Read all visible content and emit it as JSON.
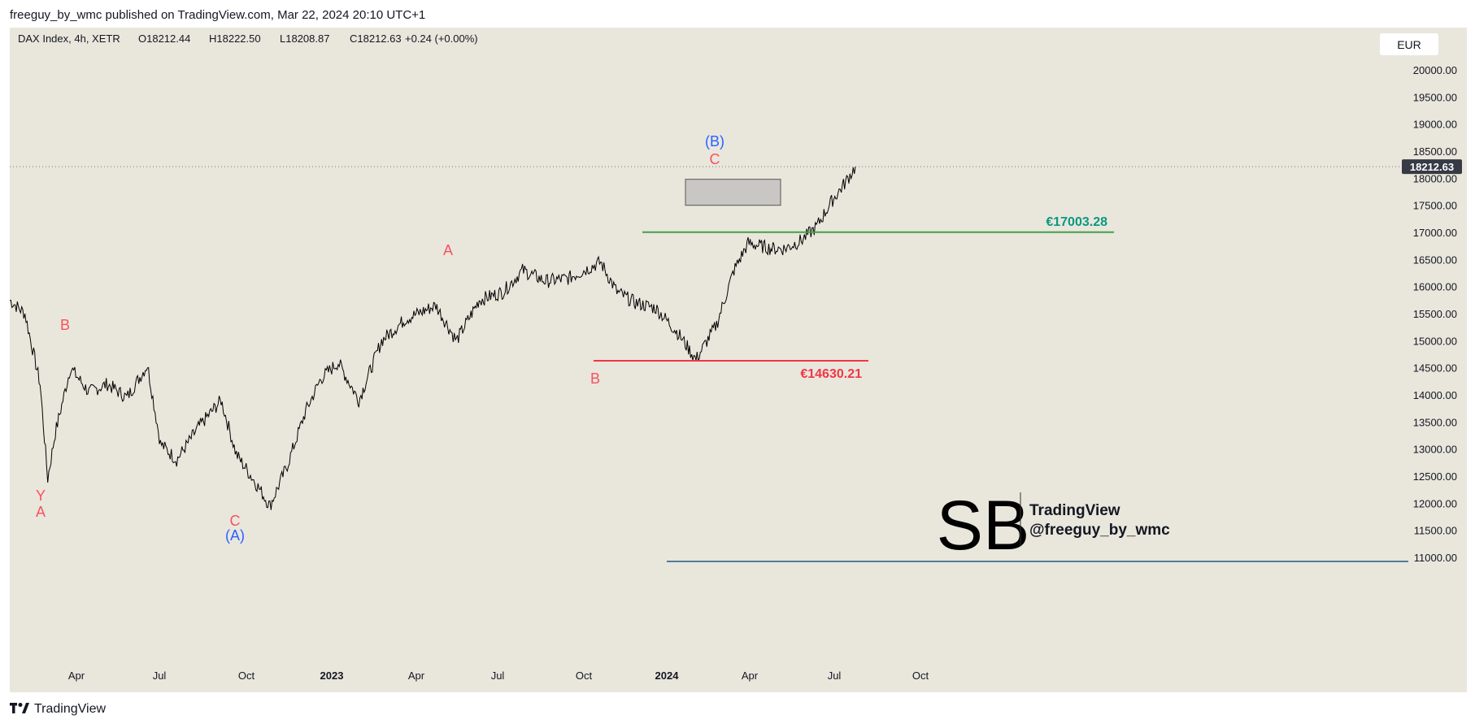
{
  "header": {
    "published_line": "freeguy_by_wmc published on TradingView.com, Mar 22, 2024 20:10 UTC+1"
  },
  "legend": {
    "symbol": "DAX Index, 4h, XETR",
    "open": "O18212.44",
    "high": "H18222.50",
    "low": "L18208.87",
    "close": "C18212.63",
    "change": "+0.24 (+0.00%)"
  },
  "currency_button": "EUR",
  "price_axis": {
    "ticks": [
      "20000.00",
      "19500.00",
      "19000.00",
      "18500.00",
      "18000.00",
      "17500.00",
      "17000.00",
      "16500.00",
      "16000.00",
      "15500.00",
      "15000.00",
      "14500.00",
      "14000.00",
      "13500.00",
      "13000.00",
      "12500.00",
      "12000.00",
      "11500.00",
      "11000.00"
    ],
    "last_price_label": "18212.63"
  },
  "time_axis": {
    "labels": [
      {
        "text": "Apr",
        "bold": false
      },
      {
        "text": "Jul",
        "bold": false
      },
      {
        "text": "Oct",
        "bold": false
      },
      {
        "text": "2023",
        "bold": true
      },
      {
        "text": "Apr",
        "bold": false
      },
      {
        "text": "Jul",
        "bold": false
      },
      {
        "text": "Oct",
        "bold": false
      },
      {
        "text": "2024",
        "bold": true
      },
      {
        "text": "Apr",
        "bold": false
      },
      {
        "text": "Jul",
        "bold": false
      },
      {
        "text": "Oct",
        "bold": false
      }
    ]
  },
  "annotations": {
    "levels": [
      {
        "label": "€17003.28",
        "value": 17003.28,
        "color": "#43a047",
        "label_color": "#089981"
      },
      {
        "label": "€14630.21",
        "value": 14630.21,
        "color": "#f23645",
        "label_color": "#f23645"
      }
    ],
    "wave_labels": [
      {
        "text": "Y",
        "color": "#f7525f"
      },
      {
        "text": "A",
        "color": "#f7525f"
      },
      {
        "text": "B",
        "color": "#f7525f"
      },
      {
        "text": "C",
        "color": "#f7525f"
      },
      {
        "text": "(A)",
        "color": "#2962ff"
      },
      {
        "text": "A",
        "color": "#f7525f"
      },
      {
        "text": "B",
        "color": "#f7525f"
      },
      {
        "text": "C",
        "color": "#f7525f"
      },
      {
        "text": "(B)",
        "color": "#2962ff"
      }
    ],
    "box": {
      "top": 17980,
      "bottom": 17500
    }
  },
  "watermark": {
    "monogram": "SB",
    "line1": "TradingView",
    "line2": "@freeguy_by_wmc"
  },
  "footer": {
    "logo_icon": "tradingview-logo-icon",
    "brand": "TradingView"
  },
  "chart_data": {
    "type": "line",
    "title": "",
    "xlabel": "",
    "ylabel": "",
    "ylim": [
      10800,
      20600
    ],
    "xlim": [
      "2022-02-01",
      "2024-12-31"
    ],
    "grid": false,
    "series": [
      {
        "x": [
          "2022-02-01",
          "2022-02-15",
          "2022-03-01",
          "2022-03-08",
          "2022-03-15",
          "2022-03-29",
          "2022-04-15",
          "2022-05-02",
          "2022-05-20",
          "2022-06-08",
          "2022-06-20",
          "2022-07-05",
          "2022-07-25",
          "2022-08-15",
          "2022-08-29",
          "2022-09-15",
          "2022-09-29",
          "2022-10-15",
          "2022-11-01",
          "2022-11-15",
          "2022-12-01",
          "2022-12-20",
          "2023-01-10",
          "2023-02-01",
          "2023-03-01",
          "2023-03-20",
          "2023-04-10",
          "2023-05-02",
          "2023-05-20",
          "2023-06-10",
          "2023-07-01",
          "2023-07-31",
          "2023-08-15",
          "2023-09-01",
          "2023-09-20",
          "2023-10-10",
          "2023-10-27",
          "2023-11-15",
          "2023-12-01",
          "2023-12-14",
          "2024-01-05",
          "2024-01-17",
          "2024-02-01",
          "2024-02-15",
          "2024-03-01",
          "2024-03-12",
          "2024-03-22"
        ],
        "values": [
          15750,
          15500,
          14200,
          12450,
          13300,
          14500,
          14050,
          14200,
          13950,
          14550,
          13100,
          12800,
          13400,
          13900,
          12900,
          12400,
          11950,
          12700,
          13700,
          14300,
          14600,
          13900,
          15000,
          15400,
          15650,
          15000,
          15750,
          15900,
          16300,
          16100,
          16150,
          16450,
          15900,
          15700,
          15600,
          15150,
          14650,
          15300,
          16300,
          16800,
          16700,
          16700,
          16850,
          17100,
          17600,
          17900,
          18212.63
        ]
      }
    ]
  }
}
